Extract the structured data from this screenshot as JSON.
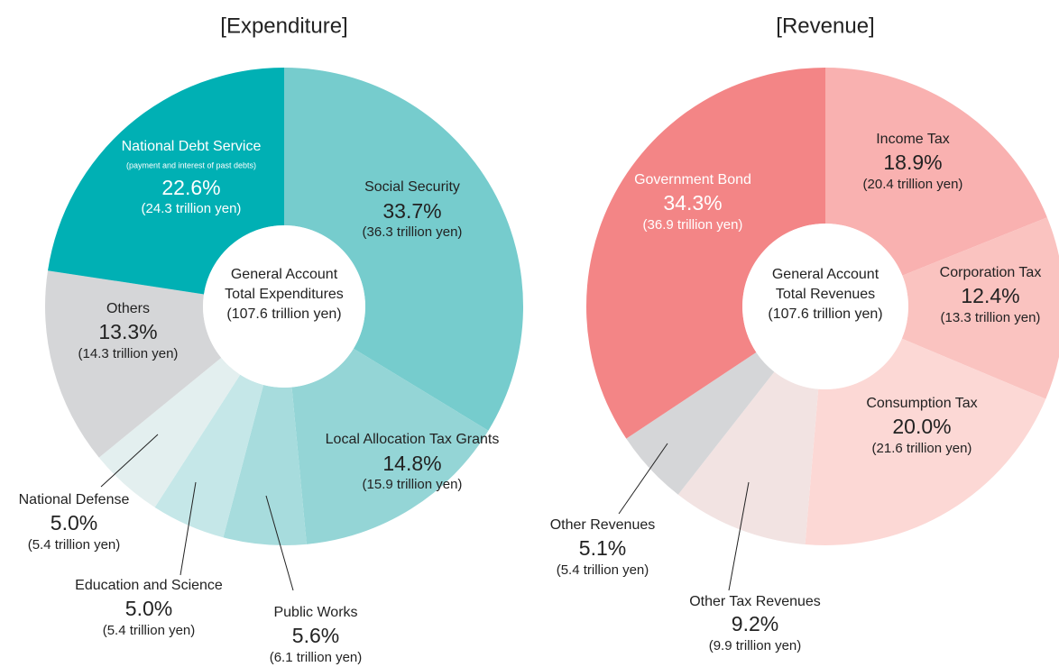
{
  "chart_data": [
    {
      "type": "pie",
      "title": "[Expenditure]",
      "categories": [
        "Social Security",
        "Local Allocation Tax Grants",
        "Public Works",
        "Education and Science",
        "National Defense",
        "Others",
        "National Debt Service"
      ],
      "values": [
        33.7,
        14.8,
        5.6,
        5.0,
        5.0,
        13.3,
        22.6
      ],
      "value_labels": [
        "33.7%",
        "14.8%",
        "5.6%",
        "5.0%",
        "5.0%",
        "13.3%",
        "22.6%"
      ],
      "amount_labels": [
        "(36.3 trillion yen)",
        "(15.9 trillion yen)",
        "(6.1 trillion yen)",
        "(5.4 trillion yen)",
        "(5.4 trillion yen)",
        "(14.3 trillion yen)",
        "(24.3 trillion yen)"
      ],
      "colors": [
        "#76cccd",
        "#94d5d6",
        "#a7dcdd",
        "#c5e7e8",
        "#e3efef",
        "#d5d6d8",
        "#00b0b4"
      ],
      "annotation": "(payment and interest of past debts)",
      "center_label": [
        "General Account",
        "Total Expenditures",
        "(107.6 trillion yen)"
      ]
    },
    {
      "type": "pie",
      "title": "[Revenue]",
      "categories": [
        "Income Tax",
        "Corporation Tax",
        "Consumption Tax",
        "Other Tax Revenues",
        "Other Revenues",
        "Government Bond"
      ],
      "values": [
        18.9,
        12.4,
        20.0,
        9.2,
        5.1,
        34.3
      ],
      "value_labels": [
        "18.9%",
        "12.4%",
        "20.0%",
        "9.2%",
        "5.1%",
        "34.3%"
      ],
      "amount_labels": [
        "(20.4 trillion yen)",
        "(13.3 trillion yen)",
        "(21.6 trillion yen)",
        "(9.9 trillion yen)",
        "(5.4 trillion yen)",
        "(36.9 trillion yen)"
      ],
      "colors": [
        "#f9b1b0",
        "#fac3c0",
        "#fcd8d5",
        "#f2e3e2",
        "#d5d6d8",
        "#f38586"
      ],
      "center_label": [
        "General Account",
        "Total Revenues",
        "(107.6 trillion yen)"
      ]
    }
  ]
}
